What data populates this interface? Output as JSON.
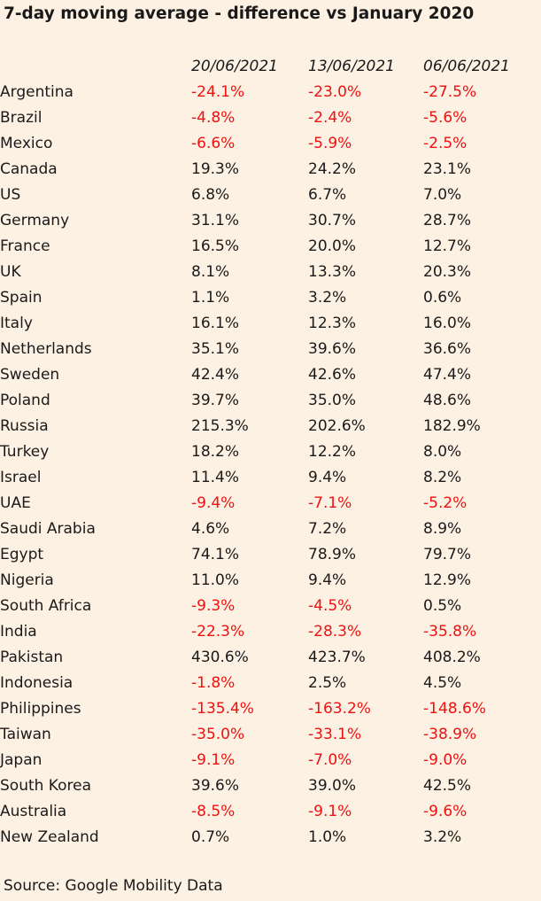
{
  "title": "7-day moving average - difference vs January 2020",
  "source": "Source: Google Mobility Data",
  "colors": {
    "background": "#fdf1e3",
    "text": "#1a1a1a",
    "negative": "#ee1111"
  },
  "chart_data": {
    "type": "table",
    "title": "7-day moving average - difference vs January 2020",
    "columns": [
      "20/06/2021",
      "13/06/2021",
      "06/06/2021"
    ],
    "rows": [
      {
        "country": "Argentina",
        "values": [
          "-24.1%",
          "-23.0%",
          "-27.5%"
        ]
      },
      {
        "country": "Brazil",
        "values": [
          "-4.8%",
          "-2.4%",
          "-5.6%"
        ]
      },
      {
        "country": "Mexico",
        "values": [
          "-6.6%",
          "-5.9%",
          "-2.5%"
        ]
      },
      {
        "country": "Canada",
        "values": [
          "19.3%",
          "24.2%",
          "23.1%"
        ]
      },
      {
        "country": "US",
        "values": [
          "6.8%",
          "6.7%",
          "7.0%"
        ]
      },
      {
        "country": "Germany",
        "values": [
          "31.1%",
          "30.7%",
          "28.7%"
        ]
      },
      {
        "country": "France",
        "values": [
          "16.5%",
          "20.0%",
          "12.7%"
        ]
      },
      {
        "country": "UK",
        "values": [
          "8.1%",
          "13.3%",
          "20.3%"
        ]
      },
      {
        "country": "Spain",
        "values": [
          "1.1%",
          "3.2%",
          "0.6%"
        ]
      },
      {
        "country": "Italy",
        "values": [
          "16.1%",
          "12.3%",
          "16.0%"
        ]
      },
      {
        "country": "Netherlands",
        "values": [
          "35.1%",
          "39.6%",
          "36.6%"
        ]
      },
      {
        "country": "Sweden",
        "values": [
          "42.4%",
          "42.6%",
          "47.4%"
        ]
      },
      {
        "country": "Poland",
        "values": [
          "39.7%",
          "35.0%",
          "48.6%"
        ]
      },
      {
        "country": "Russia",
        "values": [
          "215.3%",
          "202.6%",
          "182.9%"
        ]
      },
      {
        "country": "Turkey",
        "values": [
          "18.2%",
          "12.2%",
          "8.0%"
        ]
      },
      {
        "country": "Israel",
        "values": [
          "11.4%",
          "9.4%",
          "8.2%"
        ]
      },
      {
        "country": "UAE",
        "values": [
          "-9.4%",
          "-7.1%",
          "-5.2%"
        ]
      },
      {
        "country": "Saudi Arabia",
        "values": [
          "4.6%",
          "7.2%",
          "8.9%"
        ]
      },
      {
        "country": "Egypt",
        "values": [
          "74.1%",
          "78.9%",
          "79.7%"
        ]
      },
      {
        "country": "Nigeria",
        "values": [
          "11.0%",
          "9.4%",
          "12.9%"
        ]
      },
      {
        "country": "South Africa",
        "values": [
          "-9.3%",
          "-4.5%",
          "0.5%"
        ]
      },
      {
        "country": "India",
        "values": [
          "-22.3%",
          "-28.3%",
          "-35.8%"
        ]
      },
      {
        "country": "Pakistan",
        "values": [
          "430.6%",
          "423.7%",
          "408.2%"
        ]
      },
      {
        "country": "Indonesia",
        "values": [
          "-1.8%",
          "2.5%",
          "4.5%"
        ]
      },
      {
        "country": "Philippines",
        "values": [
          "-135.4%",
          "-163.2%",
          "-148.6%"
        ]
      },
      {
        "country": "Taiwan",
        "values": [
          "-35.0%",
          "-33.1%",
          "-38.9%"
        ]
      },
      {
        "country": "Japan",
        "values": [
          "-9.1%",
          "-7.0%",
          "-9.0%"
        ]
      },
      {
        "country": "South Korea",
        "values": [
          "39.6%",
          "39.0%",
          "42.5%"
        ]
      },
      {
        "country": "Australia",
        "values": [
          "-8.5%",
          "-9.1%",
          "-9.6%"
        ]
      },
      {
        "country": "New Zealand",
        "values": [
          "0.7%",
          "1.0%",
          "3.2%"
        ]
      }
    ]
  }
}
